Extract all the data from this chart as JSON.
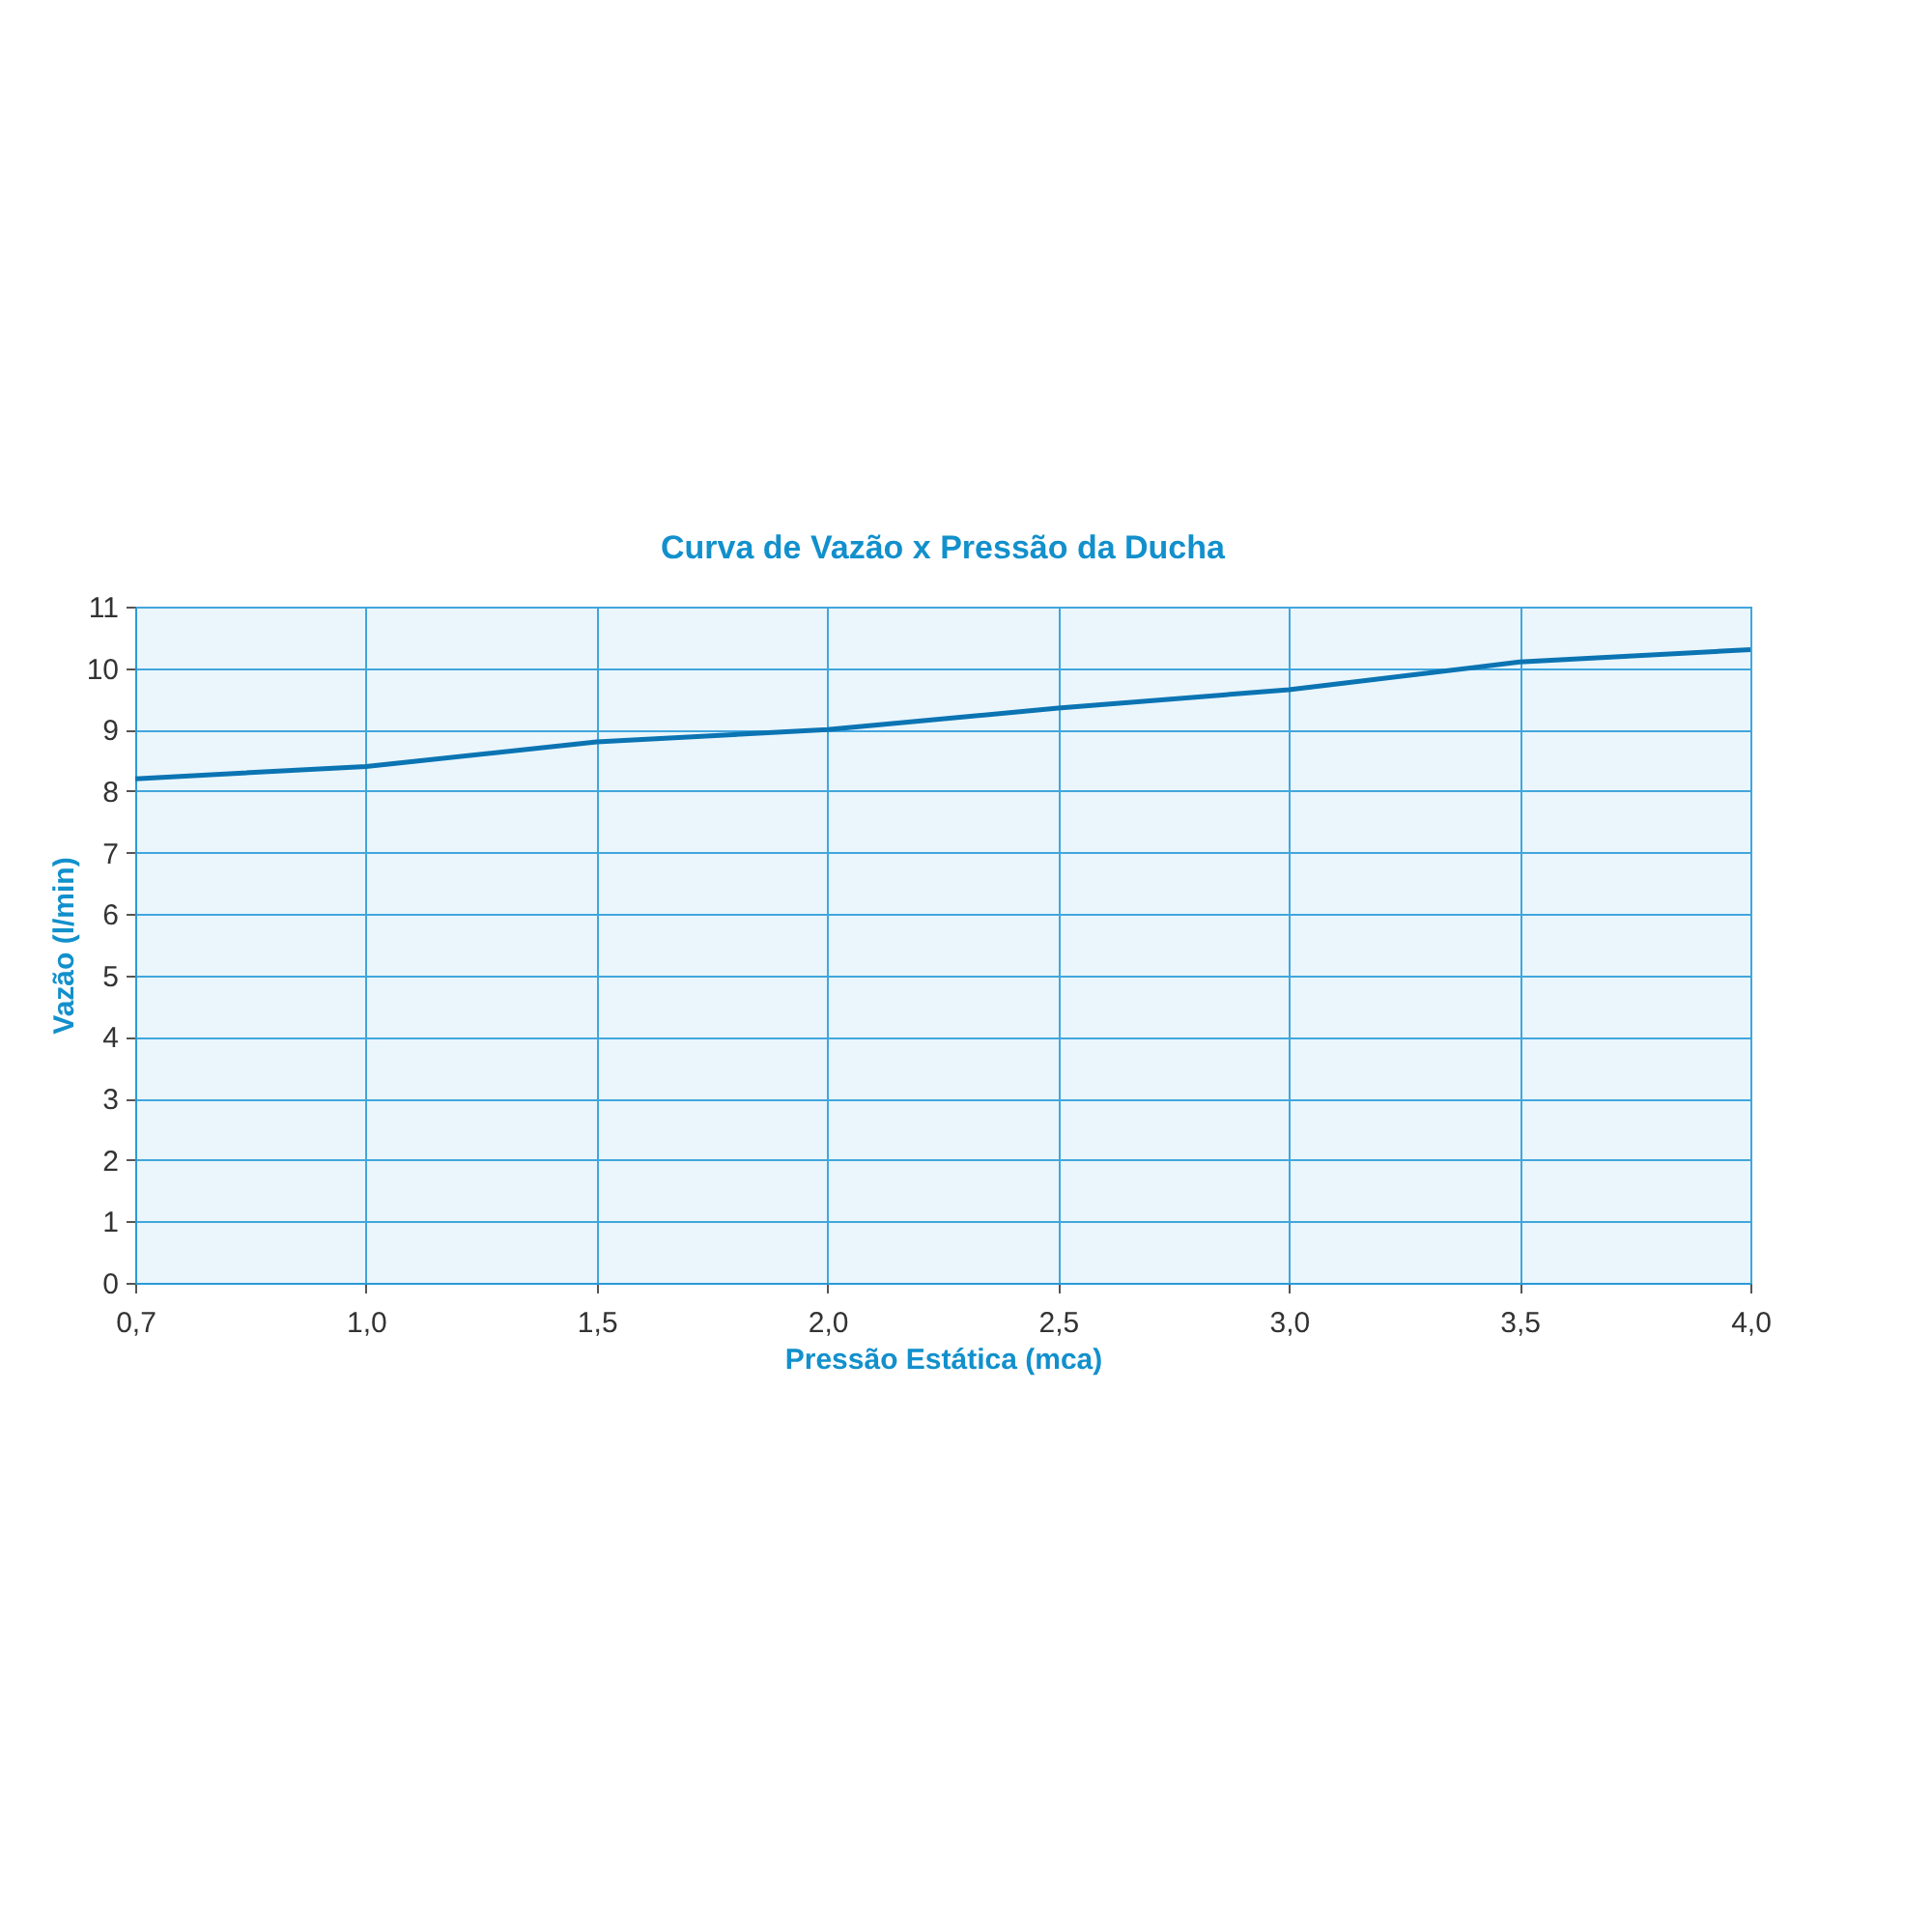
{
  "chart_data": {
    "type": "line",
    "title": "Curva de Vazão x Pressão da Ducha",
    "xlabel": "Pressão Estática (mca)",
    "ylabel": "Vazão (l/min)",
    "categories": [
      "0,7",
      "1,0",
      "1,5",
      "2,0",
      "2,5",
      "3,0",
      "3,5",
      "4,0"
    ],
    "series": [
      {
        "color": "#0b74b3",
        "values": [
          8.2,
          8.4,
          8.8,
          9.0,
          9.35,
          9.65,
          10.1,
          10.3
        ]
      }
    ],
    "ylim": [
      0,
      11
    ],
    "yticks": [
      0,
      1,
      2,
      3,
      4,
      5,
      6,
      7,
      8,
      9,
      10,
      11
    ],
    "grid": true,
    "legend": false,
    "marker": "none",
    "line_style": "solid"
  }
}
